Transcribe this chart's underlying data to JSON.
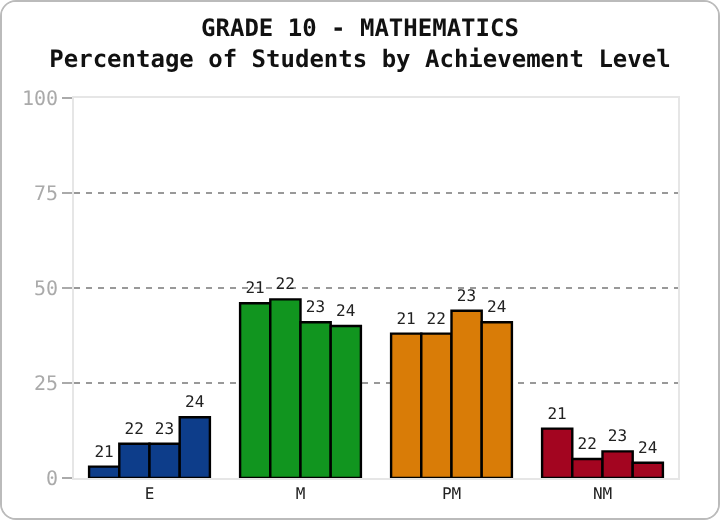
{
  "chart_data": {
    "type": "bar",
    "title": "GRADE 10 - MATHEMATICS",
    "subtitle": "Percentage of Students by Achievement Level",
    "categories": [
      "E",
      "M",
      "PM",
      "NM"
    ],
    "series": [
      {
        "name": "21",
        "colors": [
          "#0d3d8a",
          "#11951f",
          "#d97c07",
          "#a30520"
        ],
        "values": [
          3,
          46,
          38,
          13
        ]
      },
      {
        "name": "22",
        "colors": [
          "#0d3d8a",
          "#11951f",
          "#d97c07",
          "#a30520"
        ],
        "values": [
          9,
          47,
          38,
          5
        ]
      },
      {
        "name": "23",
        "colors": [
          "#0d3d8a",
          "#11951f",
          "#d97c07",
          "#a30520"
        ],
        "values": [
          9,
          41,
          44,
          7
        ]
      },
      {
        "name": "24",
        "colors": [
          "#0d3d8a",
          "#11951f",
          "#d97c07",
          "#a30520"
        ],
        "values": [
          16,
          40,
          41,
          4
        ]
      }
    ],
    "ylim": [
      0,
      100
    ],
    "yticks": [
      0,
      25,
      50,
      75,
      100
    ],
    "grid": "y",
    "legend": false
  }
}
